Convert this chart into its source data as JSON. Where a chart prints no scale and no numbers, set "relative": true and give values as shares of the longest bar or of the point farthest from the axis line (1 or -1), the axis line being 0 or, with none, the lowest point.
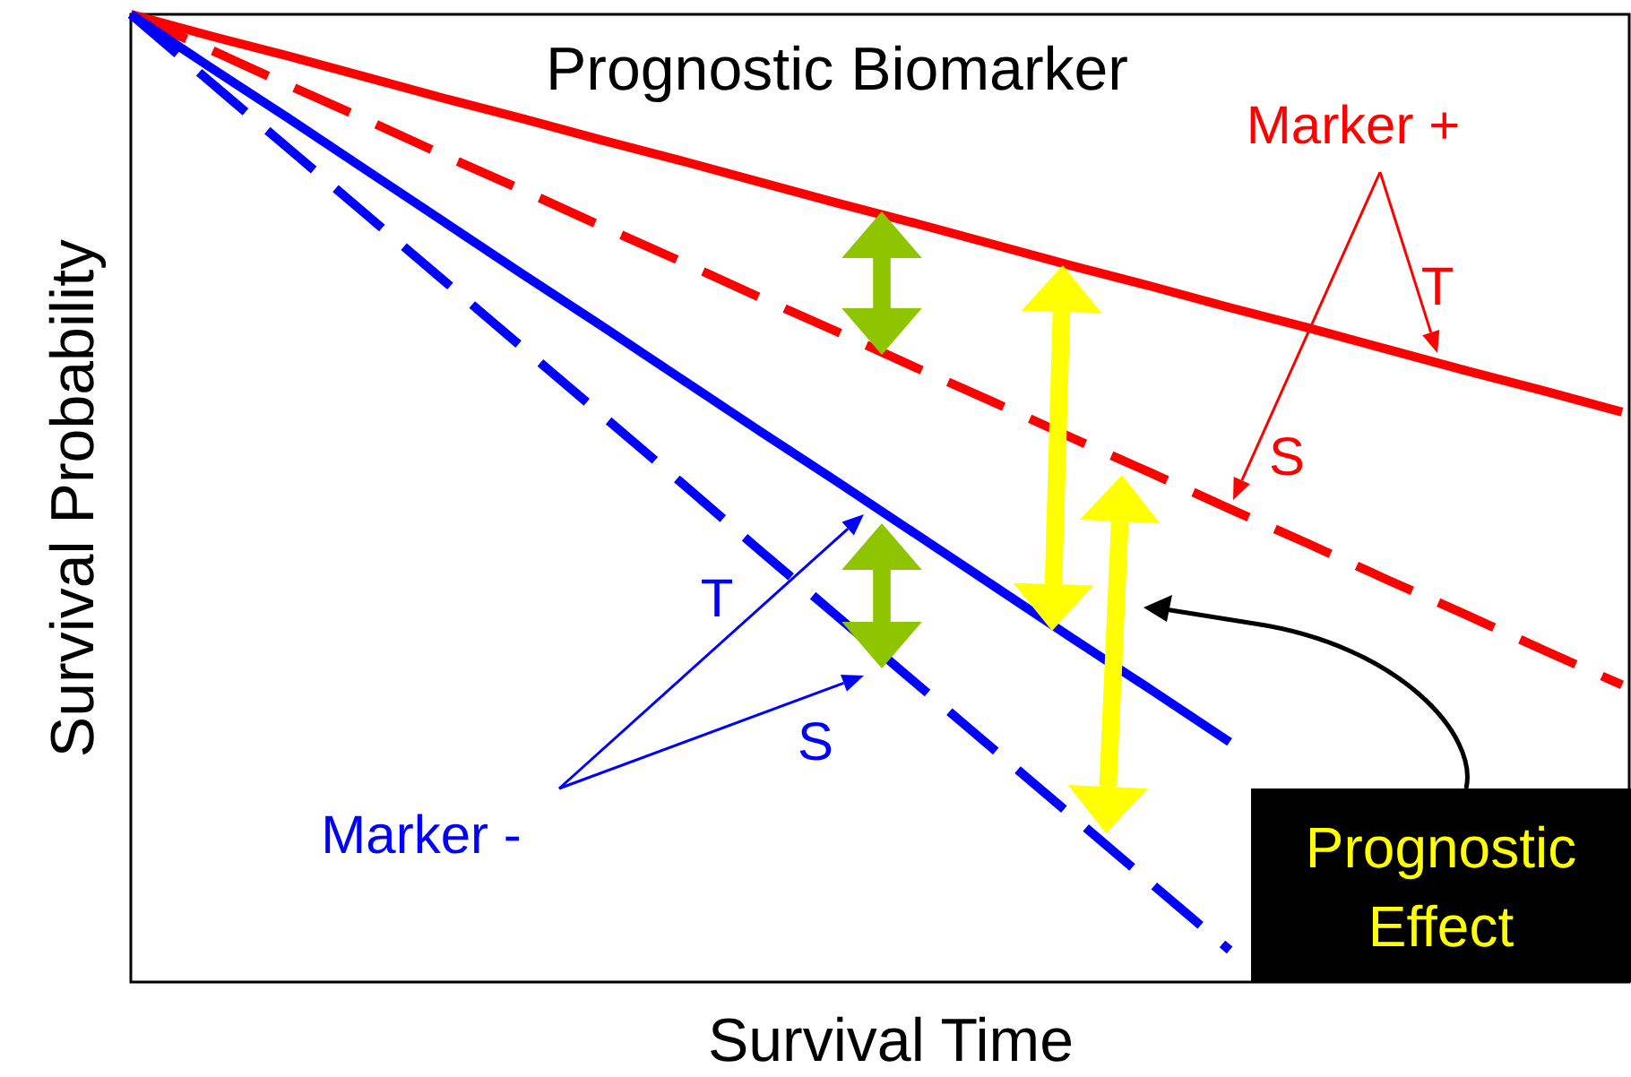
{
  "chart_data": {
    "type": "line",
    "title": "Prognostic Biomarker",
    "xlabel": "Survival Time",
    "ylabel": "Survival Probability",
    "relative": true,
    "categories": [
      null,
      null,
      null,
      null,
      null,
      null,
      null,
      null,
      null,
      null,
      null,
      null,
      null,
      null,
      null,
      null,
      null,
      null,
      null,
      null
    ],
    "series": [
      {
        "color": "#ff0000",
        "line_style": "solid",
        "values": [
          1,
          0.978,
          0.957,
          0.935,
          0.913,
          0.892,
          0.87,
          0.849,
          0.827,
          0.805,
          0.784,
          0.762,
          0.74,
          0.719,
          0.697,
          0.676,
          0.654,
          0.632,
          0.611,
          0.589
        ]
      },
      {
        "color": "#ff0000",
        "line_style": "dashed",
        "values": [
          1,
          0.964,
          0.927,
          0.891,
          0.854,
          0.818,
          0.781,
          0.745,
          0.708,
          0.672,
          0.635,
          0.599,
          0.562,
          0.526,
          0.489,
          0.453,
          0.416,
          0.38,
          0.343,
          0.307
        ]
      },
      {
        "color": "#0000ff",
        "line_style": "solid",
        "values": [
          1,
          0.946,
          0.893,
          0.839,
          0.785,
          0.731,
          0.678,
          0.624,
          0.57,
          0.517,
          0.463,
          0.409,
          0.355,
          0.302,
          0.248,
          null,
          null,
          null,
          null,
          null
        ]
      },
      {
        "color": "#0000ff",
        "line_style": "dashed",
        "values": [
          1,
          0.931,
          0.862,
          0.793,
          0.724,
          0.655,
          0.586,
          0.517,
          0.447,
          0.378,
          0.309,
          0.24,
          0.171,
          0.102,
          0.033,
          null,
          null,
          null,
          null,
          null
        ]
      }
    ],
    "annotations": [
      "Marker +",
      "T",
      "S",
      "Marker -",
      "T",
      "S",
      "Prognostic Effect"
    ]
  }
}
